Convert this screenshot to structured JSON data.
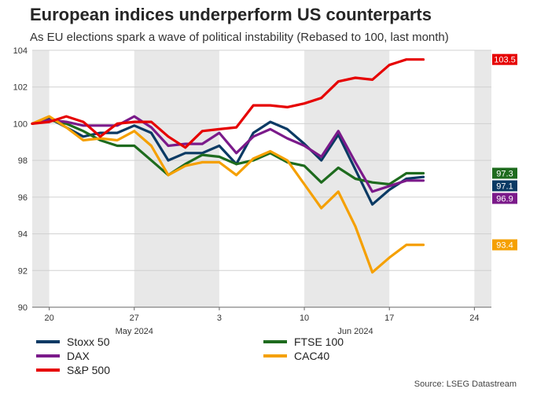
{
  "title": "European indices underperform US counterparts",
  "subtitle": "As EU elections spark a wave of political instability (Rebased to 100, last month)",
  "source": "Source: LSEG Datastream",
  "chart_data": {
    "type": "line",
    "ylim": [
      90,
      104
    ],
    "yticks": [
      90,
      92,
      94,
      96,
      98,
      100,
      102,
      104
    ],
    "x_range": [
      -1,
      26
    ],
    "xticks": [
      {
        "x": 0,
        "label": "20"
      },
      {
        "x": 5,
        "label": "27"
      },
      {
        "x": 10,
        "label": "3"
      },
      {
        "x": 15,
        "label": "10"
      },
      {
        "x": 20,
        "label": "17"
      },
      {
        "x": 25,
        "label": "24"
      }
    ],
    "month_labels": [
      {
        "x": 5,
        "label": "May 2024"
      },
      {
        "x": 18,
        "label": "Jun 2024"
      }
    ],
    "weekend_bands": [
      [
        -1,
        0
      ],
      [
        5,
        10
      ],
      [
        15,
        20
      ],
      [
        25,
        26
      ]
    ],
    "grid": true,
    "series": [
      {
        "name": "Stoxx 50",
        "color": "#0b3a64",
        "end_label": "97.1",
        "x": [
          -1,
          0,
          1,
          2,
          3,
          4,
          5,
          6,
          7,
          8,
          9,
          10,
          11,
          12,
          13,
          14,
          15,
          16,
          17,
          18,
          19,
          20,
          21,
          22
        ],
        "values": [
          100.0,
          100.3,
          99.8,
          99.3,
          99.5,
          99.5,
          99.9,
          99.5,
          98.0,
          98.4,
          98.4,
          98.8,
          97.8,
          99.5,
          100.1,
          99.7,
          98.9,
          98.0,
          99.4,
          97.5,
          95.6,
          96.4,
          97.0,
          97.1
        ]
      },
      {
        "name": "FTSE 100",
        "color": "#1e6b1e",
        "end_label": "97.3",
        "x": [
          -1,
          0,
          1,
          2,
          3,
          4,
          5,
          6,
          7,
          8,
          9,
          10,
          11,
          12,
          13,
          14,
          15,
          16,
          17,
          18,
          19,
          20,
          21,
          22
        ],
        "values": [
          100.0,
          100.2,
          100.0,
          99.6,
          99.1,
          98.8,
          98.8,
          98.0,
          97.2,
          97.8,
          98.3,
          98.2,
          97.8,
          98.0,
          98.4,
          97.9,
          97.7,
          96.8,
          97.6,
          97.0,
          96.8,
          96.7,
          97.3,
          97.3
        ]
      },
      {
        "name": "DAX",
        "color": "#7b1a8a",
        "end_label": "96.9",
        "x": [
          -1,
          0,
          1,
          2,
          3,
          4,
          5,
          6,
          7,
          8,
          9,
          10,
          11,
          12,
          13,
          14,
          15,
          16,
          17,
          18,
          19,
          20,
          21,
          22
        ],
        "values": [
          100.0,
          100.2,
          100.1,
          99.9,
          99.9,
          99.9,
          100.4,
          99.8,
          98.8,
          98.9,
          98.9,
          99.5,
          98.4,
          99.3,
          99.7,
          99.2,
          98.8,
          98.2,
          99.6,
          97.9,
          96.3,
          96.6,
          96.9,
          96.9
        ]
      },
      {
        "name": "CAC40",
        "color": "#f5a000",
        "end_label": "93.4",
        "x": [
          -1,
          0,
          1,
          2,
          3,
          4,
          5,
          6,
          7,
          8,
          9,
          10,
          11,
          12,
          13,
          14,
          15,
          16,
          17,
          18,
          19,
          20,
          21,
          22
        ],
        "values": [
          100.0,
          100.4,
          99.8,
          99.1,
          99.2,
          99.1,
          99.6,
          98.8,
          97.2,
          97.7,
          97.9,
          97.9,
          97.2,
          98.1,
          98.5,
          98.0,
          96.7,
          95.4,
          96.3,
          94.4,
          91.9,
          92.7,
          93.4,
          93.4
        ]
      },
      {
        "name": "S&P 500",
        "color": "#e60000",
        "end_label": "103.5",
        "x": [
          -1,
          0,
          1,
          2,
          3,
          4,
          5,
          6,
          7,
          8,
          9,
          10,
          11,
          12,
          13,
          14,
          15,
          16,
          17,
          18,
          19,
          20,
          21,
          22
        ],
        "values": [
          100.0,
          100.1,
          100.4,
          100.1,
          99.3,
          100.0,
          100.1,
          100.1,
          99.3,
          98.7,
          99.6,
          99.7,
          99.8,
          101.0,
          101.0,
          100.9,
          101.1,
          101.4,
          102.3,
          102.5,
          102.4,
          103.2,
          103.5,
          103.5
        ]
      }
    ]
  },
  "legend": [
    {
      "label": "Stoxx 50",
      "color": "#0b3a64"
    },
    {
      "label": "FTSE 100",
      "color": "#1e6b1e"
    },
    {
      "label": "DAX",
      "color": "#7b1a8a"
    },
    {
      "label": "CAC40",
      "color": "#f5a000"
    },
    {
      "label": "S&P 500",
      "color": "#e60000"
    }
  ]
}
